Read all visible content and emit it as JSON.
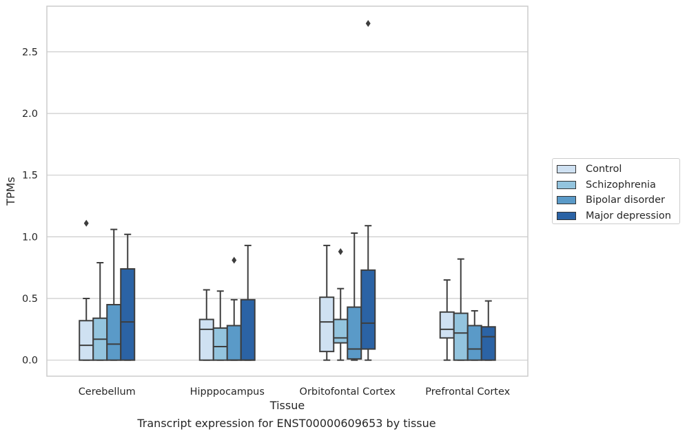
{
  "caption": "Transcript expression for ENST00000609653 by tissue",
  "chart_data": {
    "type": "box",
    "title": "",
    "xlabel": "Tissue",
    "ylabel": "TPMs",
    "ylim": [
      -0.13,
      2.87
    ],
    "yticks": [
      0.0,
      0.5,
      1.0,
      1.5,
      2.0,
      2.5
    ],
    "ytick_labels": [
      "0.0",
      "0.5",
      "1.0",
      "1.5",
      "2.0",
      "2.5"
    ],
    "categories": [
      "Cerebellum",
      "Hipppocampus",
      "Orbitofontal Cortex",
      "Prefrontal Cortex"
    ],
    "grid": "horizontal",
    "legend_position": "right",
    "series": [
      {
        "name": "Control",
        "color": "#cfe1f2",
        "boxes": [
          {
            "whislo": 0.0,
            "q1": 0.0,
            "med": 0.12,
            "q3": 0.32,
            "whishi": 0.5,
            "fliers": [
              1.11
            ]
          },
          {
            "whislo": 0.0,
            "q1": 0.0,
            "med": 0.25,
            "q3": 0.33,
            "whishi": 0.57,
            "fliers": []
          },
          {
            "whislo": 0.0,
            "q1": 0.07,
            "med": 0.31,
            "q3": 0.51,
            "whishi": 0.93,
            "fliers": []
          },
          {
            "whislo": 0.0,
            "q1": 0.18,
            "med": 0.25,
            "q3": 0.39,
            "whishi": 0.65,
            "fliers": []
          }
        ]
      },
      {
        "name": "Schizophrenia",
        "color": "#93c4de",
        "boxes": [
          {
            "whislo": 0.0,
            "q1": 0.0,
            "med": 0.17,
            "q3": 0.34,
            "whishi": 0.79,
            "fliers": []
          },
          {
            "whislo": 0.0,
            "q1": 0.0,
            "med": 0.11,
            "q3": 0.26,
            "whishi": 0.56,
            "fliers": []
          },
          {
            "whislo": 0.0,
            "q1": 0.14,
            "med": 0.18,
            "q3": 0.33,
            "whishi": 0.58,
            "fliers": [
              0.88
            ]
          },
          {
            "whislo": 0.0,
            "q1": 0.0,
            "med": 0.22,
            "q3": 0.38,
            "whishi": 0.82,
            "fliers": []
          }
        ]
      },
      {
        "name": "Bipolar disorder",
        "color": "#5a9ac8",
        "boxes": [
          {
            "whislo": 0.0,
            "q1": 0.0,
            "med": 0.13,
            "q3": 0.45,
            "whishi": 1.06,
            "fliers": []
          },
          {
            "whislo": 0.0,
            "q1": 0.0,
            "med": 0.0,
            "q3": 0.28,
            "whishi": 0.49,
            "fliers": [
              0.81
            ]
          },
          {
            "whislo": 0.0,
            "q1": 0.01,
            "med": 0.09,
            "q3": 0.43,
            "whishi": 1.03,
            "fliers": []
          },
          {
            "whislo": 0.0,
            "q1": 0.0,
            "med": 0.09,
            "q3": 0.28,
            "whishi": 0.4,
            "fliers": []
          }
        ]
      },
      {
        "name": "Major depression",
        "color": "#2b63a5",
        "boxes": [
          {
            "whislo": 0.0,
            "q1": 0.0,
            "med": 0.31,
            "q3": 0.74,
            "whishi": 1.02,
            "fliers": []
          },
          {
            "whislo": 0.0,
            "q1": 0.0,
            "med": 0.0,
            "q3": 0.49,
            "whishi": 0.93,
            "fliers": []
          },
          {
            "whislo": 0.0,
            "q1": 0.09,
            "med": 0.3,
            "q3": 0.73,
            "whishi": 1.09,
            "fliers": [
              2.73
            ]
          },
          {
            "whislo": 0.0,
            "q1": 0.0,
            "med": 0.19,
            "q3": 0.27,
            "whishi": 0.48,
            "fliers": []
          }
        ]
      }
    ]
  }
}
